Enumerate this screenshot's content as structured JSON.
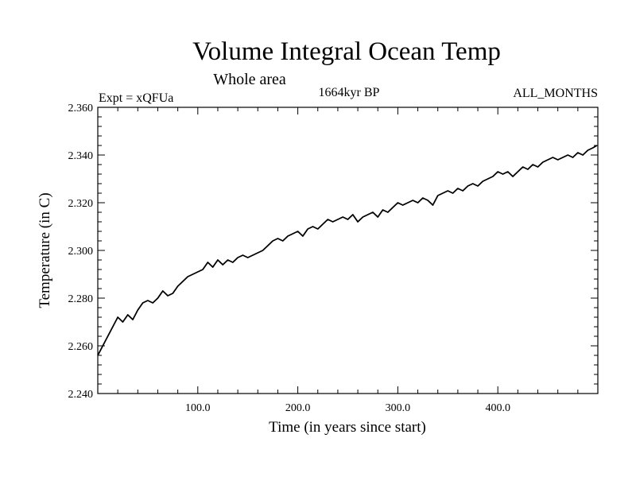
{
  "chart_data": {
    "type": "line",
    "title": "Volume Integral Ocean Temp",
    "subtitle": "Whole area",
    "left_label": "Expt = xQFUa",
    "center_label": "1664kyr BP",
    "right_label": "ALL_MONTHS",
    "xlabel": "Time (in years since start)",
    "ylabel": "Temperature (in C)",
    "xlim": [
      0,
      500
    ],
    "ylim": [
      2.24,
      2.36
    ],
    "xticks": [
      100,
      200,
      300,
      400
    ],
    "xtick_labels": [
      "100.0",
      "200.0",
      "300.0",
      "400.0"
    ],
    "yticks": [
      2.24,
      2.26,
      2.28,
      2.3,
      2.32,
      2.34,
      2.36
    ],
    "ytick_labels": [
      "2.240",
      "2.260",
      "2.280",
      "2.300",
      "2.320",
      "2.340",
      "2.360"
    ],
    "grid": false,
    "series": [
      {
        "name": "Volume integral ocean temperature",
        "x": [
          0,
          5,
          10,
          15,
          20,
          25,
          30,
          35,
          40,
          45,
          50,
          55,
          60,
          65,
          70,
          75,
          80,
          85,
          90,
          95,
          100,
          105,
          110,
          115,
          120,
          125,
          130,
          135,
          140,
          145,
          150,
          155,
          160,
          165,
          170,
          175,
          180,
          185,
          190,
          195,
          200,
          205,
          210,
          215,
          220,
          225,
          230,
          235,
          240,
          245,
          250,
          255,
          260,
          265,
          270,
          275,
          280,
          285,
          290,
          295,
          300,
          305,
          310,
          315,
          320,
          325,
          330,
          335,
          340,
          345,
          350,
          355,
          360,
          365,
          370,
          375,
          380,
          385,
          390,
          395,
          400,
          405,
          410,
          415,
          420,
          425,
          430,
          435,
          440,
          445,
          450,
          455,
          460,
          465,
          470,
          475,
          480,
          485,
          490,
          495,
          499
        ],
        "values": [
          2.256,
          2.26,
          2.264,
          2.268,
          2.272,
          2.27,
          2.273,
          2.271,
          2.275,
          2.278,
          2.279,
          2.278,
          2.28,
          2.283,
          2.281,
          2.282,
          2.285,
          2.287,
          2.289,
          2.29,
          2.291,
          2.292,
          2.295,
          2.293,
          2.296,
          2.294,
          2.296,
          2.295,
          2.297,
          2.298,
          2.297,
          2.298,
          2.299,
          2.3,
          2.302,
          2.304,
          2.305,
          2.304,
          2.306,
          2.307,
          2.308,
          2.306,
          2.309,
          2.31,
          2.309,
          2.311,
          2.313,
          2.312,
          2.313,
          2.314,
          2.313,
          2.315,
          2.312,
          2.314,
          2.315,
          2.316,
          2.314,
          2.317,
          2.316,
          2.318,
          2.32,
          2.319,
          2.32,
          2.321,
          2.32,
          2.322,
          2.321,
          2.319,
          2.323,
          2.324,
          2.325,
          2.324,
          2.326,
          2.325,
          2.327,
          2.328,
          2.327,
          2.329,
          2.33,
          2.331,
          2.333,
          2.332,
          2.333,
          2.331,
          2.333,
          2.335,
          2.334,
          2.336,
          2.335,
          2.337,
          2.338,
          2.339,
          2.338,
          2.339,
          2.34,
          2.339,
          2.341,
          2.34,
          2.342,
          2.343,
          2.344
        ]
      }
    ]
  }
}
